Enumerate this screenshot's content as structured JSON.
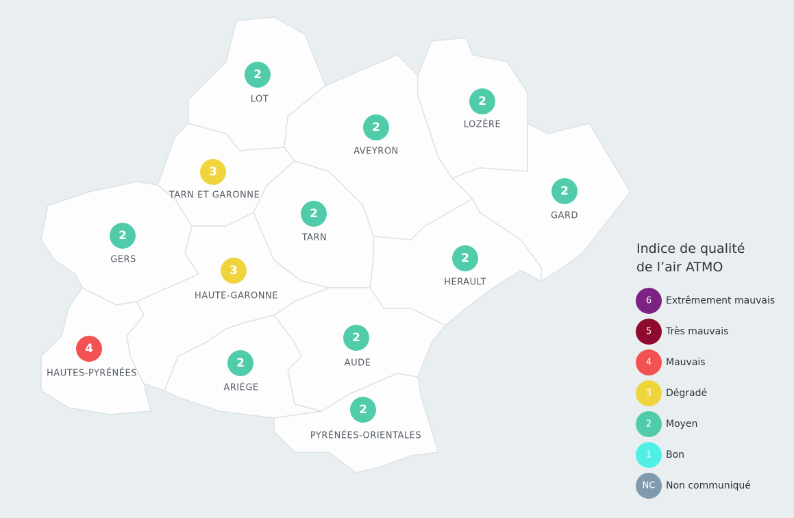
{
  "departments": [
    {
      "name": "LOT",
      "index": 2
    },
    {
      "name": "AVEYRON",
      "index": 2
    },
    {
      "name": "LOZÈRE",
      "index": 2
    },
    {
      "name": "TARN ET GARONNE",
      "index": 3
    },
    {
      "name": "GARD",
      "index": 2
    },
    {
      "name": "TARN",
      "index": 2
    },
    {
      "name": "GERS",
      "index": 2
    },
    {
      "name": "HERAULT",
      "index": 2
    },
    {
      "name": "HAUTE-GARONNE",
      "index": 3
    },
    {
      "name": "AUDE",
      "index": 2
    },
    {
      "name": "HAUTES-PYRÉNÉES",
      "index": 4
    },
    {
      "name": "ARIÈGE",
      "index": 2
    },
    {
      "name": "PYRÉNÉES-ORIENTALES",
      "index": 2
    }
  ],
  "legend": {
    "title_lines": [
      "Indice de qualité",
      "de l’air ATMO"
    ],
    "items": [
      {
        "code": "6",
        "label": "Extrêmement mauvais",
        "color": "#7b2283"
      },
      {
        "code": "5",
        "label": "Très mauvais",
        "color": "#8e0a2e"
      },
      {
        "code": "4",
        "label": "Mauvais",
        "color": "#f25252"
      },
      {
        "code": "3",
        "label": "Dégradé",
        "color": "#f0d43c"
      },
      {
        "code": "2",
        "label": "Moyen",
        "color": "#50ccaa"
      },
      {
        "code": "1",
        "label": "Bon",
        "color": "#50f0e6"
      },
      {
        "code": "NC",
        "label": "Non communiqué",
        "color": "#7f9aad"
      }
    ]
  }
}
